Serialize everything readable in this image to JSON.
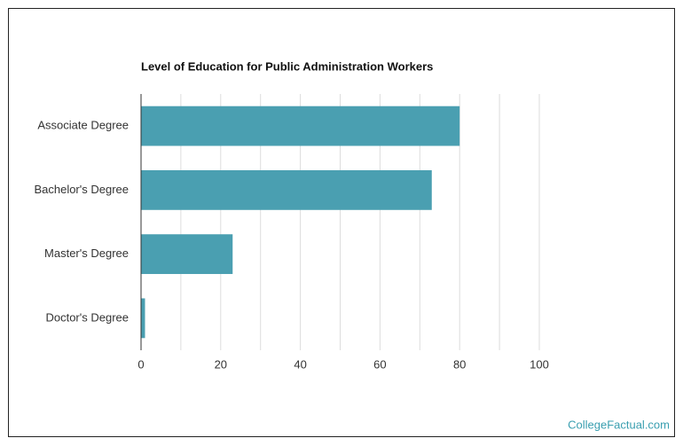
{
  "chart_data": {
    "type": "bar",
    "orientation": "horizontal",
    "title": "Level of Education for Public Administration Workers",
    "categories": [
      "Associate Degree",
      "Bachelor's Degree",
      "Master's Degree",
      "Doctor's Degree"
    ],
    "values": [
      80,
      73,
      23,
      1
    ],
    "color": "#4a9fb1",
    "xlim": [
      0,
      100
    ],
    "xticks": [
      0,
      20,
      40,
      60,
      80,
      100
    ],
    "xgrid": [
      0,
      10,
      20,
      30,
      40,
      50,
      60,
      70,
      80,
      90,
      100
    ],
    "grid": true
  },
  "footer": {
    "watermark": "CollegeFactual.com"
  }
}
